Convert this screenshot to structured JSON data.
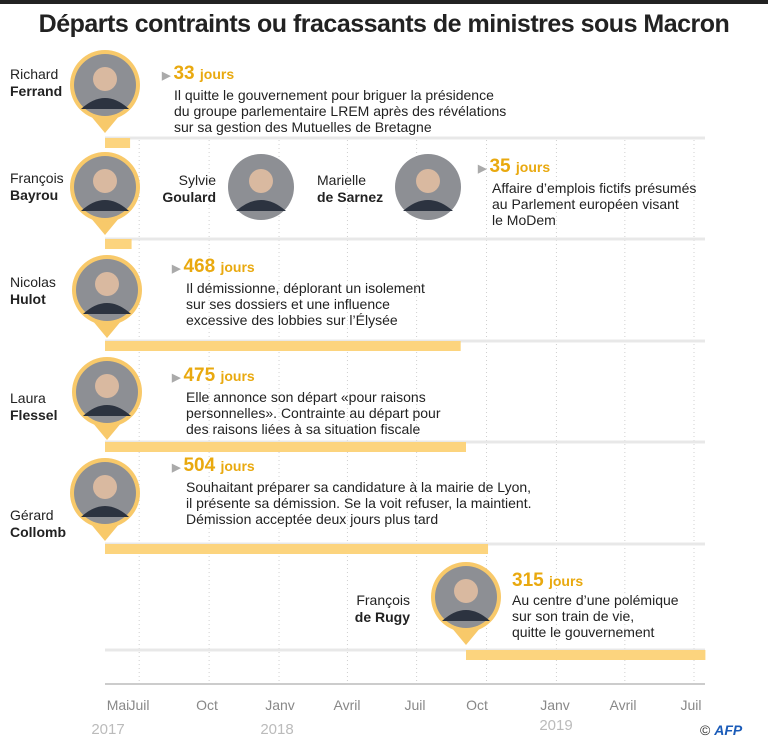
{
  "title": "Départs contraints ou fracassants de ministres sous Macron",
  "colors": {
    "bar": "#fcd47e",
    "pin": "#f8c96a",
    "days": "#e9a90f",
    "track": "#e8e8e8",
    "grid": "#d0d0d0"
  },
  "chart_data": {
    "type": "bar",
    "orientation": "horizontal-timeline",
    "x_axis": {
      "ticks": [
        "Mai",
        "Juil",
        "Oct",
        "Janv",
        "Avril",
        "Juil",
        "Oct",
        "Janv",
        "Avril",
        "Juil"
      ],
      "years": [
        "2017",
        "2018",
        "2019"
      ],
      "range": [
        "2017-05-17",
        "2019-08-01"
      ]
    },
    "grid": true,
    "entries": [
      {
        "first": "Richard",
        "last": "Ferrand",
        "days": 33,
        "days_label": "33",
        "unit": "jours",
        "start": "2017-05-17",
        "text": [
          "Il quitte le gouvernement pour briguer la présidence",
          "du groupe parlementaire LREM après des révélations",
          "sur sa gestion des Mutuelles de Bretagne"
        ]
      },
      {
        "first": "François",
        "last": "Bayrou",
        "days": 35,
        "days_label": "35",
        "unit": "jours",
        "start": "2017-05-17",
        "others": [
          {
            "first": "Sylvie",
            "last": "Goulard"
          },
          {
            "first": "Marielle",
            "last": "de Sarnez"
          }
        ],
        "text": [
          "Affaire d’emplois fictifs présumés",
          "au Parlement européen visant",
          "le MoDem"
        ]
      },
      {
        "first": "Nicolas",
        "last": "Hulot",
        "days": 468,
        "days_label": "468",
        "unit": "jours",
        "start": "2017-05-17",
        "text": [
          "Il démissionne, déplorant un isolement",
          "sur ses dossiers et une influence",
          "excessive des lobbies sur l’Élysée"
        ]
      },
      {
        "first": "Laura",
        "last": "Flessel",
        "days": 475,
        "days_label": "475",
        "unit": "jours",
        "start": "2017-05-17",
        "text": [
          "Elle annonce son départ «pour raisons",
          "personnelles». Contrainte au départ pour",
          "des raisons liées à sa situation fiscale"
        ]
      },
      {
        "first": "Gérard",
        "last": "Collomb",
        "days": 504,
        "days_label": "504",
        "unit": "jours",
        "start": "2017-05-17",
        "text": [
          "Souhaitant préparer sa candidature à la mairie de Lyon,",
          "il présente sa démission. Se la voit refuser, la maintient.",
          "Démission acceptée deux jours plus tard"
        ]
      },
      {
        "first": "François",
        "last": "de Rugy",
        "days": 315,
        "days_label": "315",
        "unit": "jours",
        "start": "2018-09-04",
        "text": [
          "Au centre d’une polémique",
          "sur son train de vie,",
          "quitte le gouvernement"
        ]
      }
    ]
  },
  "credit": {
    "symbol": "©",
    "logo": "AFP"
  }
}
